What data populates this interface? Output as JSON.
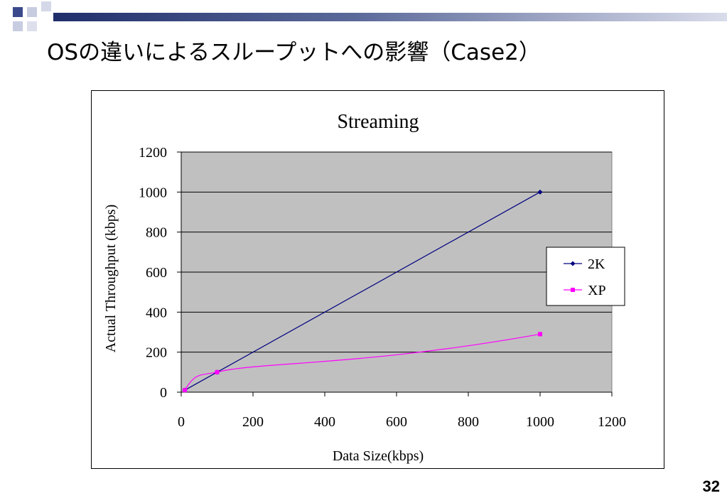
{
  "slide": {
    "title": "OSの違いによるスループットへの影響（Case2）",
    "page_number": "32",
    "colors": {
      "title_bar": "#1f2e6b",
      "accent_square": "#3a4a8c",
      "accent_light": "#c8cce0"
    }
  },
  "chart_data": {
    "type": "line",
    "title": "Streaming",
    "xlabel": "Data Size(kbps)",
    "ylabel": "Actual Throughput (kbps)",
    "xlim": [
      0,
      1200
    ],
    "ylim": [
      0,
      1200
    ],
    "x_ticks": [
      0,
      200,
      400,
      600,
      800,
      1000,
      1200
    ],
    "y_ticks": [
      0,
      200,
      400,
      600,
      800,
      1000,
      1200
    ],
    "grid": "horizontal",
    "plot_background": "#c0c0c0",
    "legend_position": "right",
    "series": [
      {
        "name": "2K",
        "color": "#000080",
        "marker": "diamond",
        "points": [
          [
            10,
            10
          ],
          [
            100,
            100
          ],
          [
            1000,
            1000
          ]
        ]
      },
      {
        "name": "XP",
        "color": "#ff00ff",
        "marker": "square",
        "points": [
          [
            10,
            10
          ],
          [
            100,
            100
          ],
          [
            1000,
            290
          ]
        ]
      }
    ]
  }
}
